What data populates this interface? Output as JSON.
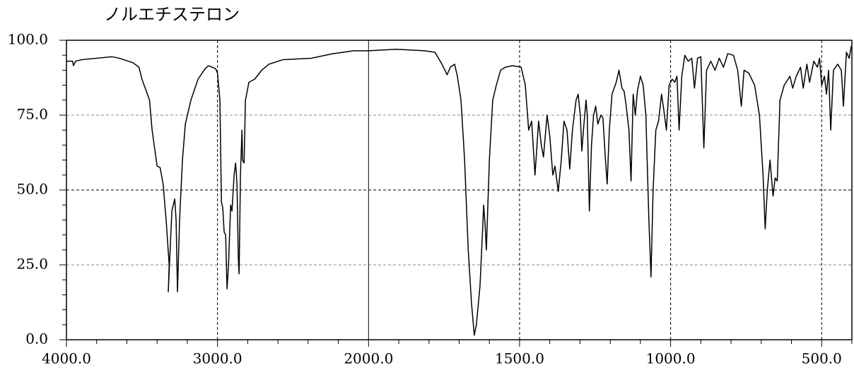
{
  "chart_data": {
    "type": "line",
    "title": "ノルエチステロン",
    "x": [
      4000,
      3960,
      3953,
      3940,
      3900,
      3800,
      3700,
      3650,
      3560,
      3520,
      3500,
      3450,
      3433,
      3400,
      3380,
      3360,
      3340,
      3320,
      3326,
      3302,
      3283,
      3274,
      3265,
      3251,
      3232,
      3213,
      3176,
      3129,
      3082,
      3059,
      3012,
      3000,
      2984,
      2974,
      2965,
      2956,
      2946,
      2937,
      2927,
      2913,
      2904,
      2890,
      2880,
      2871,
      2862,
      2857,
      2848,
      2838,
      2834,
      2824,
      2815,
      2792,
      2754,
      2707,
      2660,
      2567,
      2379,
      2239,
      2098,
      2000,
      1909,
      1815,
      1780,
      1757,
      1740,
      1729,
      1715,
      1706,
      1694,
      1682,
      1670,
      1659,
      1650,
      1643,
      1631,
      1621,
      1619,
      1614,
      1610,
      1600,
      1589,
      1577,
      1563,
      1547,
      1523,
      1495,
      1481,
      1470,
      1460,
      1449,
      1437,
      1428,
      1421,
      1409,
      1400,
      1390,
      1383,
      1379,
      1372,
      1362,
      1353,
      1343,
      1334,
      1325,
      1313,
      1306,
      1299,
      1294,
      1287,
      1280,
      1276,
      1269,
      1262,
      1255,
      1248,
      1241,
      1231,
      1224,
      1217,
      1210,
      1203,
      1194,
      1180,
      1171,
      1161,
      1154,
      1147,
      1138,
      1131,
      1124,
      1117,
      1110,
      1100,
      1091,
      1082,
      1072,
      1065,
      1058,
      1049,
      1040,
      1030,
      1023,
      1014,
      1005,
      995,
      986,
      979,
      972,
      963,
      953,
      942,
      930,
      921,
      911,
      900,
      890,
      881,
      867,
      853,
      839,
      825,
      811,
      792,
      778,
      766,
      757,
      741,
      722,
      706,
      694,
      687,
      680,
      671,
      661,
      654,
      647,
      638,
      624,
      605,
      596,
      584,
      570,
      561,
      549,
      540,
      526,
      514,
      507,
      500,
      491,
      484,
      477,
      470,
      461,
      447,
      435,
      428,
      418,
      409,
      402,
      400
    ],
    "series": [
      {
        "color": "#000000",
        "values": [
          93,
          93,
          91.5,
          93,
          93.5,
          94,
          94.5,
          94,
          92.5,
          91,
          87,
          80,
          70,
          58,
          57.5,
          52,
          40,
          25,
          16,
          43,
          47,
          40,
          16,
          40,
          60,
          72,
          80,
          87,
          90.5,
          91.5,
          90.5,
          89,
          80,
          46,
          44,
          36,
          35,
          17,
          25,
          45,
          43,
          55,
          59,
          52,
          27,
          22,
          55,
          70,
          60,
          59,
          80,
          86,
          87,
          90,
          92,
          93.5,
          94,
          95.5,
          96.5,
          96.5,
          97,
          96.5,
          96,
          92,
          88.5,
          91,
          92,
          88,
          80,
          60,
          30,
          12,
          1.5,
          5,
          18,
          40,
          45,
          38,
          30,
          60,
          80,
          85,
          90,
          91,
          91.5,
          91,
          85,
          70,
          73,
          55,
          73,
          65,
          61,
          75,
          68,
          55,
          58,
          55,
          49.5,
          60,
          73,
          70,
          57,
          70,
          80,
          82,
          75,
          63,
          72,
          80,
          75,
          43,
          65,
          75,
          78,
          72,
          75,
          74,
          62,
          52,
          70,
          82,
          86,
          90,
          84,
          83,
          78,
          70,
          53,
          82,
          75,
          83,
          88,
          85,
          75,
          40,
          21,
          50,
          70,
          73,
          82,
          77,
          70,
          85,
          87,
          86,
          88,
          70,
          88,
          95,
          93,
          94,
          84,
          94,
          94.5,
          64,
          90,
          93,
          90,
          94,
          91,
          95.5,
          95,
          90,
          78,
          90,
          89,
          85,
          75,
          55,
          37,
          50,
          60,
          48,
          54,
          53,
          80,
          85,
          88,
          84,
          88,
          91,
          84,
          92,
          86,
          93,
          91,
          94,
          85,
          88,
          82,
          90,
          70,
          90,
          92,
          90,
          78,
          96,
          94,
          98,
          97
        ]
      }
    ],
    "xlim": [
      4000,
      400
    ],
    "x_break": 2000,
    "x_break_scale": 2,
    "xticks": [
      {
        "value": 4000,
        "label": "4000.0"
      },
      {
        "value": 3000,
        "label": "3000.0"
      },
      {
        "value": 2000,
        "label": "2000.0"
      },
      {
        "value": 1500,
        "label": "1500.0"
      },
      {
        "value": 1000,
        "label": "1000.0"
      },
      {
        "value": 500,
        "label": "500.0"
      }
    ],
    "xminorticks": [
      3800,
      3600,
      3400,
      3200,
      2800,
      2600,
      2400,
      2200,
      1900,
      1800,
      1700,
      1600,
      1400,
      1300,
      1200,
      1100,
      900,
      800,
      700,
      600,
      400
    ],
    "ylim": [
      0,
      100
    ],
    "yticks": [
      {
        "value": 0,
        "label": "0.0"
      },
      {
        "value": 25,
        "label": "25.0"
      },
      {
        "value": 50,
        "label": "50.0"
      },
      {
        "value": 75,
        "label": "75.0"
      },
      {
        "value": 100,
        "label": "100.0"
      }
    ],
    "yminorticks": [
      5,
      10,
      15,
      20,
      30,
      35,
      40,
      45,
      55,
      60,
      65,
      70,
      80,
      85,
      90,
      95
    ],
    "grid": true
  }
}
